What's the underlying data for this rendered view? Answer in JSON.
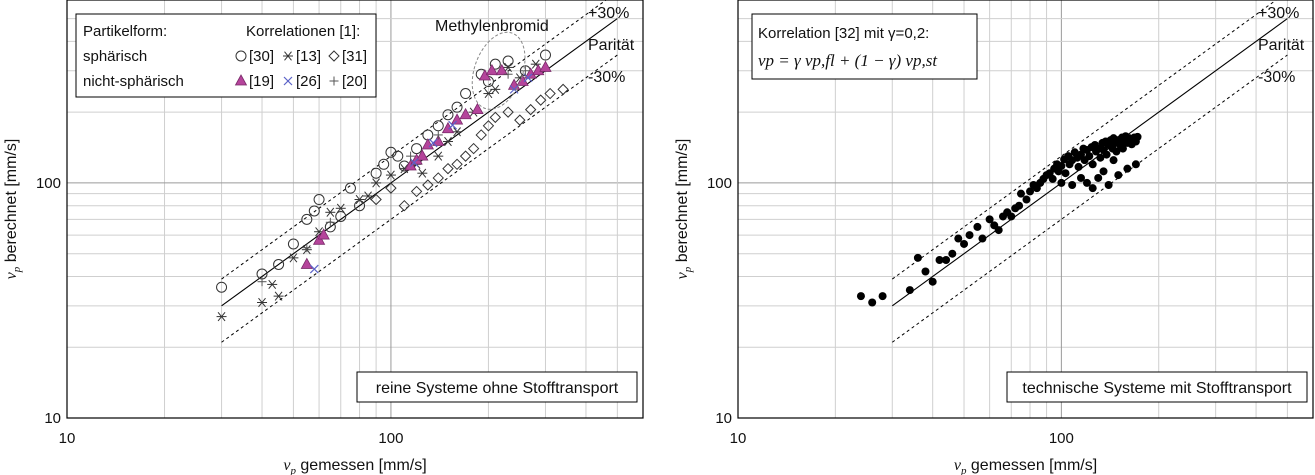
{
  "chart_data": [
    {
      "type": "scatter",
      "scale": "log-log",
      "xlabel_var": "v",
      "xlabel_sub": "p",
      "xlabel_rest": " gemessen [mm/s]",
      "ylabel_var": "v",
      "ylabel_sub": "p",
      "ylabel_rest": " berechnet [mm/s]",
      "xlim": [
        10,
        600
      ],
      "ylim": [
        10,
        600
      ],
      "x_ticks": [
        "10",
        "100"
      ],
      "y_ticks": [
        "10",
        "100"
      ],
      "grid": true,
      "lines": {
        "parity": "Parität",
        "plus": "+30%",
        "minus": "-30%"
      },
      "bottom_label": "reine Systeme ohne Stofftransport",
      "annotation": "Methylenbromid",
      "legend": {
        "header_left": "Partikelform:",
        "header_right": "Korrelationen [1]:",
        "row1_label": "sphärisch",
        "row2_label": "nicht-sphärisch",
        "entries_row1": [
          "[30]",
          "[13]",
          "[31]"
        ],
        "entries_row2": [
          "[19]",
          "[26]",
          "[20]"
        ]
      },
      "colors": {
        "spherical": "#333333",
        "nonspherical_fill": "#b5449b",
        "cross26": "#5b62c8"
      },
      "series": [
        {
          "name": "[30]",
          "marker": "circle",
          "points": [
            [
              30,
              36
            ],
            [
              40,
              41
            ],
            [
              45,
              45
            ],
            [
              50,
              55
            ],
            [
              55,
              70
            ],
            [
              58,
              76
            ],
            [
              60,
              85
            ],
            [
              65,
              65
            ],
            [
              70,
              72
            ],
            [
              75,
              95
            ],
            [
              80,
              80
            ],
            [
              90,
              110
            ],
            [
              95,
              120
            ],
            [
              100,
              135
            ],
            [
              105,
              130
            ],
            [
              110,
              118
            ],
            [
              120,
              140
            ],
            [
              130,
              160
            ],
            [
              140,
              175
            ],
            [
              150,
              195
            ],
            [
              160,
              210
            ],
            [
              170,
              240
            ],
            [
              190,
              290
            ],
            [
              200,
              270
            ],
            [
              210,
              320
            ],
            [
              230,
              330
            ],
            [
              260,
              300
            ],
            [
              300,
              350
            ]
          ]
        },
        {
          "name": "[13]",
          "marker": "asterisk",
          "points": [
            [
              30,
              27
            ],
            [
              40,
              31
            ],
            [
              43,
              37
            ],
            [
              45,
              33
            ],
            [
              50,
              48
            ],
            [
              55,
              52
            ],
            [
              60,
              62
            ],
            [
              65,
              75
            ],
            [
              70,
              78
            ],
            [
              80,
              85
            ],
            [
              85,
              88
            ],
            [
              90,
              100
            ],
            [
              100,
              108
            ],
            [
              110,
              115
            ],
            [
              120,
              120
            ],
            [
              125,
              110
            ],
            [
              140,
              130
            ],
            [
              150,
              150
            ],
            [
              160,
              165
            ],
            [
              180,
              200
            ],
            [
              200,
              240
            ],
            [
              210,
              250
            ],
            [
              230,
              310
            ],
            [
              250,
              280
            ],
            [
              280,
              320
            ]
          ]
        },
        {
          "name": "[31]",
          "marker": "diamond",
          "points": [
            [
              90,
              85
            ],
            [
              100,
              95
            ],
            [
              110,
              80
            ],
            [
              120,
              92
            ],
            [
              130,
              98
            ],
            [
              140,
              105
            ],
            [
              150,
              115
            ],
            [
              160,
              120
            ],
            [
              170,
              130
            ],
            [
              180,
              140
            ],
            [
              190,
              160
            ],
            [
              200,
              175
            ],
            [
              210,
              190
            ],
            [
              230,
              200
            ],
            [
              250,
              185
            ],
            [
              270,
              205
            ],
            [
              290,
              225
            ],
            [
              310,
              240
            ],
            [
              340,
              250
            ]
          ]
        },
        {
          "name": "[19]",
          "marker": "triangle",
          "points": [
            [
              55,
              45
            ],
            [
              60,
              57
            ],
            [
              62,
              60
            ],
            [
              115,
              118
            ],
            [
              120,
              125
            ],
            [
              125,
              130
            ],
            [
              130,
              145
            ],
            [
              140,
              150
            ],
            [
              150,
              170
            ],
            [
              160,
              185
            ],
            [
              170,
              195
            ],
            [
              185,
              205
            ],
            [
              195,
              285
            ],
            [
              205,
              300
            ],
            [
              220,
              300
            ],
            [
              240,
              260
            ],
            [
              255,
              270
            ],
            [
              270,
              290
            ],
            [
              285,
              300
            ],
            [
              300,
              310
            ]
          ]
        },
        {
          "name": "[26]",
          "marker": "cross",
          "points": [
            [
              58,
              43
            ],
            [
              118,
              122
            ],
            [
              135,
              148
            ],
            [
              155,
              176
            ],
            [
              240,
              250
            ],
            [
              265,
              280
            ]
          ]
        },
        {
          "name": "[20]",
          "marker": "plus",
          "points": [
            [
              40,
              38
            ],
            [
              55,
              53
            ],
            [
              65,
              68
            ],
            [
              115,
              130
            ],
            [
              140,
              160
            ],
            [
              230,
              290
            ],
            [
              260,
              300
            ]
          ]
        }
      ]
    },
    {
      "type": "scatter",
      "scale": "log-log",
      "xlabel_var": "v",
      "xlabel_sub": "p",
      "xlabel_rest": " gemessen [mm/s]",
      "ylabel_var": "v",
      "ylabel_sub": "p",
      "ylabel_rest": " berechnet [mm/s]",
      "xlim": [
        10,
        600
      ],
      "ylim": [
        10,
        600
      ],
      "x_ticks": [
        "10",
        "100"
      ],
      "y_ticks": [
        "10",
        "100"
      ],
      "grid": true,
      "lines": {
        "parity": "Parität",
        "plus": "+30%",
        "minus": "-30%"
      },
      "bottom_label": "technische Systeme mit Stofftransport",
      "legend": {
        "line1": "Korrelation [32] mit γ=0,2:",
        "line2": "v_p = γ v_{p,fl} + (1 − γ) v_{p,st}"
      },
      "colors": {
        "points": "#000000"
      },
      "series": [
        {
          "marker": "dot",
          "points": [
            [
              24,
              33
            ],
            [
              26,
              31
            ],
            [
              28,
              33
            ],
            [
              34,
              35
            ],
            [
              36,
              48
            ],
            [
              38,
              42
            ],
            [
              40,
              38
            ],
            [
              42,
              47
            ],
            [
              44,
              47
            ],
            [
              46,
              50
            ],
            [
              48,
              58
            ],
            [
              50,
              55
            ],
            [
              52,
              60
            ],
            [
              55,
              65
            ],
            [
              57,
              58
            ],
            [
              60,
              70
            ],
            [
              62,
              66
            ],
            [
              64,
              63
            ],
            [
              66,
              72
            ],
            [
              68,
              75
            ],
            [
              70,
              72
            ],
            [
              72,
              78
            ],
            [
              74,
              80
            ],
            [
              75,
              90
            ],
            [
              78,
              85
            ],
            [
              80,
              92
            ],
            [
              82,
              98
            ],
            [
              84,
              95
            ],
            [
              86,
              100
            ],
            [
              88,
              104
            ],
            [
              90,
              108
            ],
            [
              92,
              110
            ],
            [
              94,
              104
            ],
            [
              95,
              115
            ],
            [
              97,
              120
            ],
            [
              98,
              112
            ],
            [
              100,
              118
            ],
            [
              102,
              126
            ],
            [
              103,
              110
            ],
            [
              105,
              130
            ],
            [
              106,
              120
            ],
            [
              108,
              125
            ],
            [
              110,
              135
            ],
            [
              112,
              128
            ],
            [
              113,
              117
            ],
            [
              115,
              132
            ],
            [
              117,
              140
            ],
            [
              118,
              125
            ],
            [
              120,
              138
            ],
            [
              122,
              130
            ],
            [
              124,
              142
            ],
            [
              125,
              120
            ],
            [
              127,
              145
            ],
            [
              128,
              136
            ],
            [
              130,
              140
            ],
            [
              132,
              128
            ],
            [
              134,
              148
            ],
            [
              135,
              138
            ],
            [
              137,
              150
            ],
            [
              138,
              132
            ],
            [
              140,
              145
            ],
            [
              142,
              152
            ],
            [
              144,
              140
            ],
            [
              145,
              155
            ],
            [
              147,
              148
            ],
            [
              148,
              136
            ],
            [
              150,
              152
            ],
            [
              152,
              145
            ],
            [
              154,
              156
            ],
            [
              155,
              140
            ],
            [
              157,
              150
            ],
            [
              158,
              158
            ],
            [
              160,
              148
            ],
            [
              162,
              155
            ],
            [
              164,
              150
            ],
            [
              165,
              146
            ],
            [
              168,
              156
            ],
            [
              170,
              150
            ],
            [
              172,
              157
            ],
            [
              100,
              100
            ],
            [
              108,
              98
            ],
            [
              115,
              105
            ],
            [
              120,
              100
            ],
            [
              130,
              105
            ],
            [
              140,
              98
            ],
            [
              150,
              108
            ],
            [
              160,
              115
            ],
            [
              170,
              120
            ],
            [
              145,
              125
            ],
            [
              125,
              95
            ],
            [
              135,
              112
            ]
          ]
        }
      ]
    }
  ]
}
